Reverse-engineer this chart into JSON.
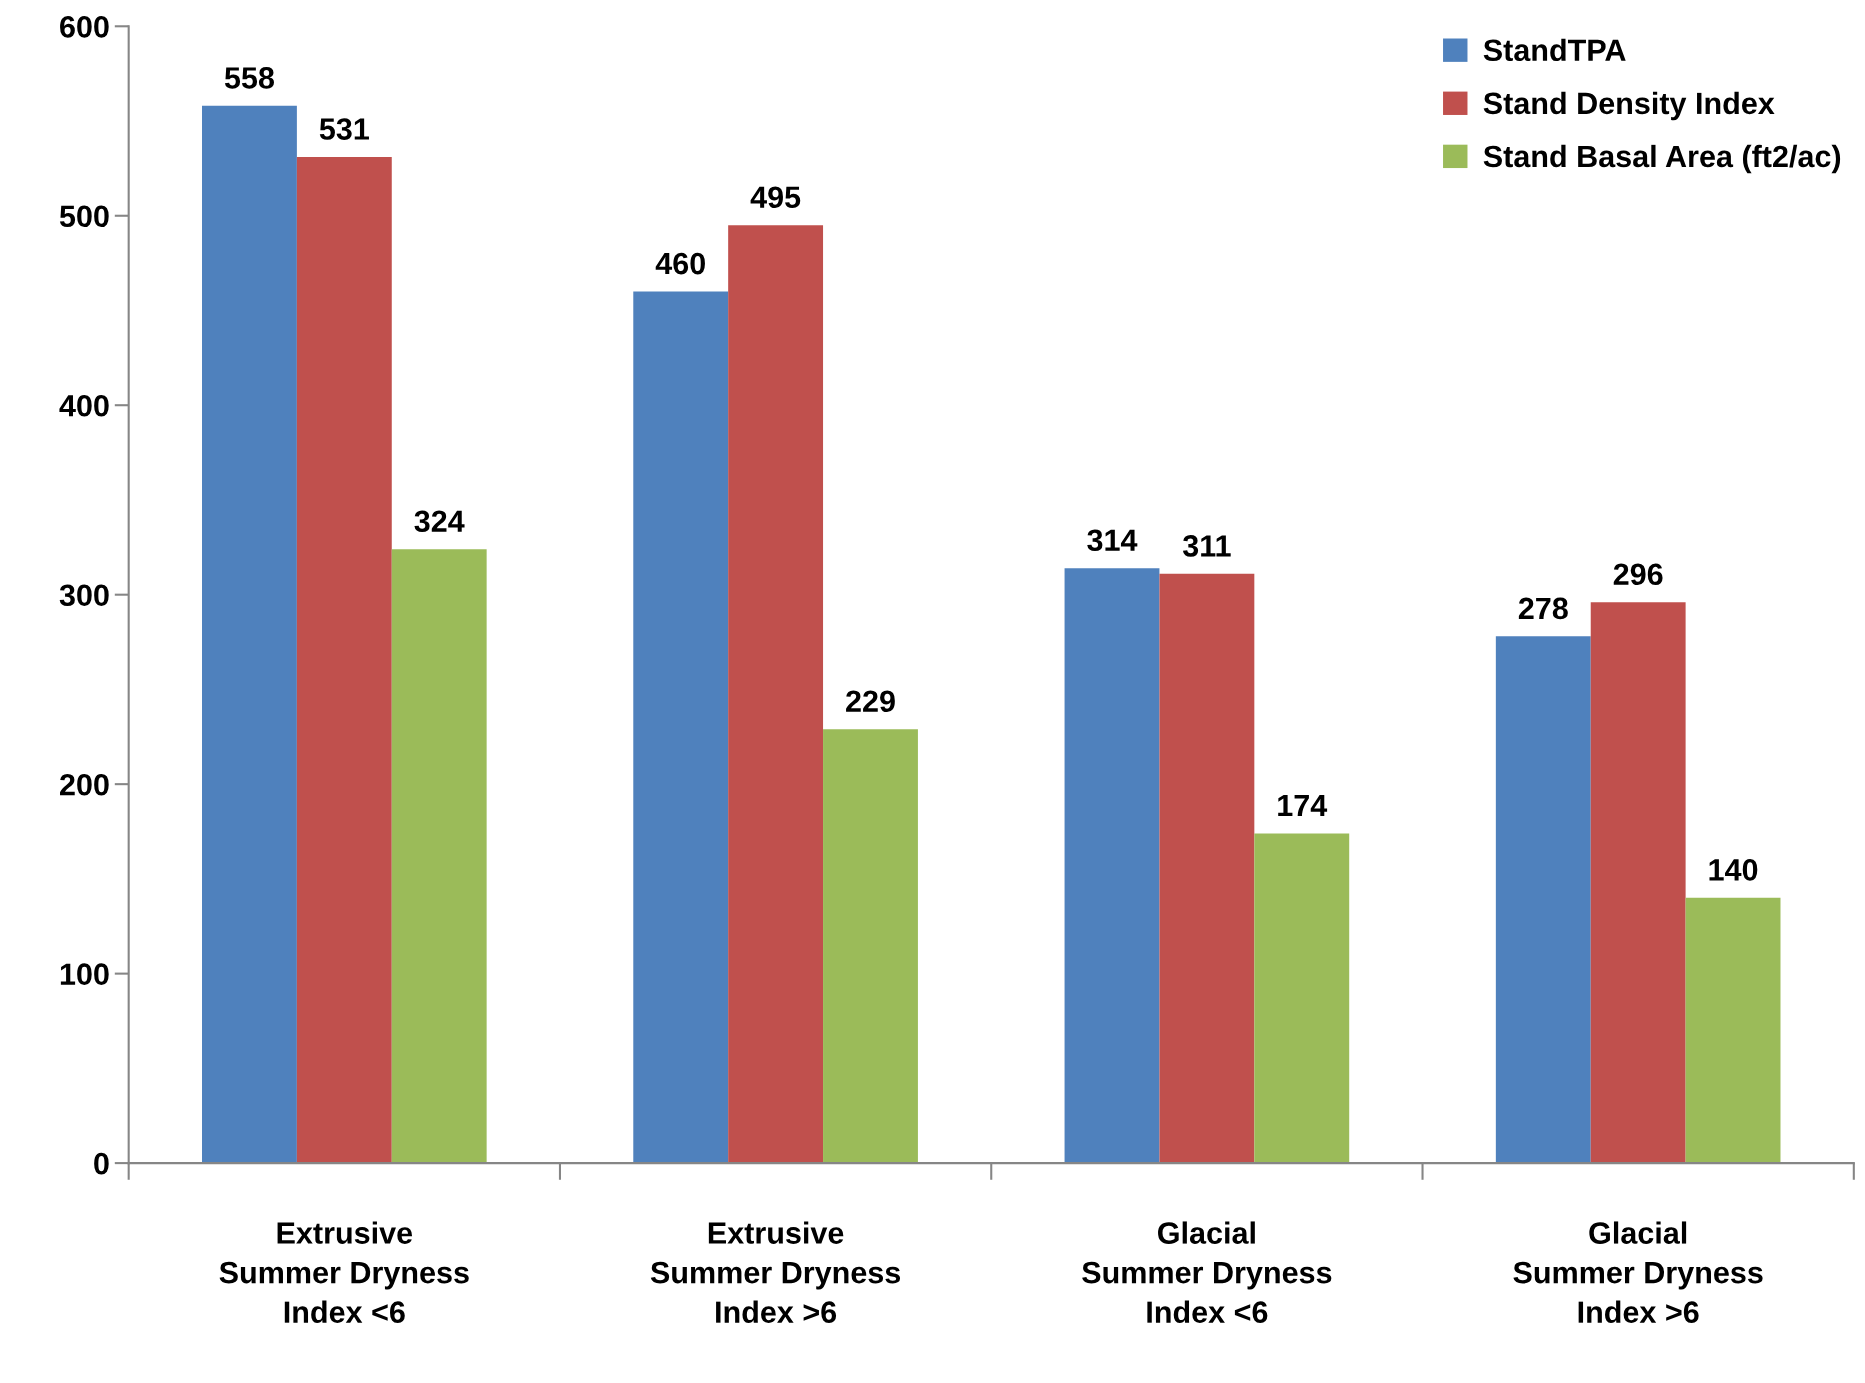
{
  "chart_data": {
    "type": "bar",
    "categories": [
      "Extrusive\nSummer Dryness\nIndex <6",
      "Extrusive\nSummer Dryness\nIndex >6",
      "Glacial\nSummer Dryness\nIndex <6",
      "Glacial\nSummer Dryness\nIndex >6"
    ],
    "series": [
      {
        "name": "StandTPA",
        "color": "#4f81bd",
        "values": [
          558,
          460,
          314,
          278
        ]
      },
      {
        "name": "Stand Density Index",
        "color": "#c0504d",
        "values": [
          531,
          495,
          311,
          296
        ]
      },
      {
        "name": "Stand Basal Area (ft2/ac)",
        "color": "#9bbb59",
        "values": [
          324,
          229,
          174,
          140
        ]
      }
    ],
    "ylim": [
      0,
      600
    ],
    "yticks": [
      0,
      100,
      200,
      300,
      400,
      500,
      600
    ],
    "data_labels": true,
    "grid": false,
    "legend": "top right"
  }
}
